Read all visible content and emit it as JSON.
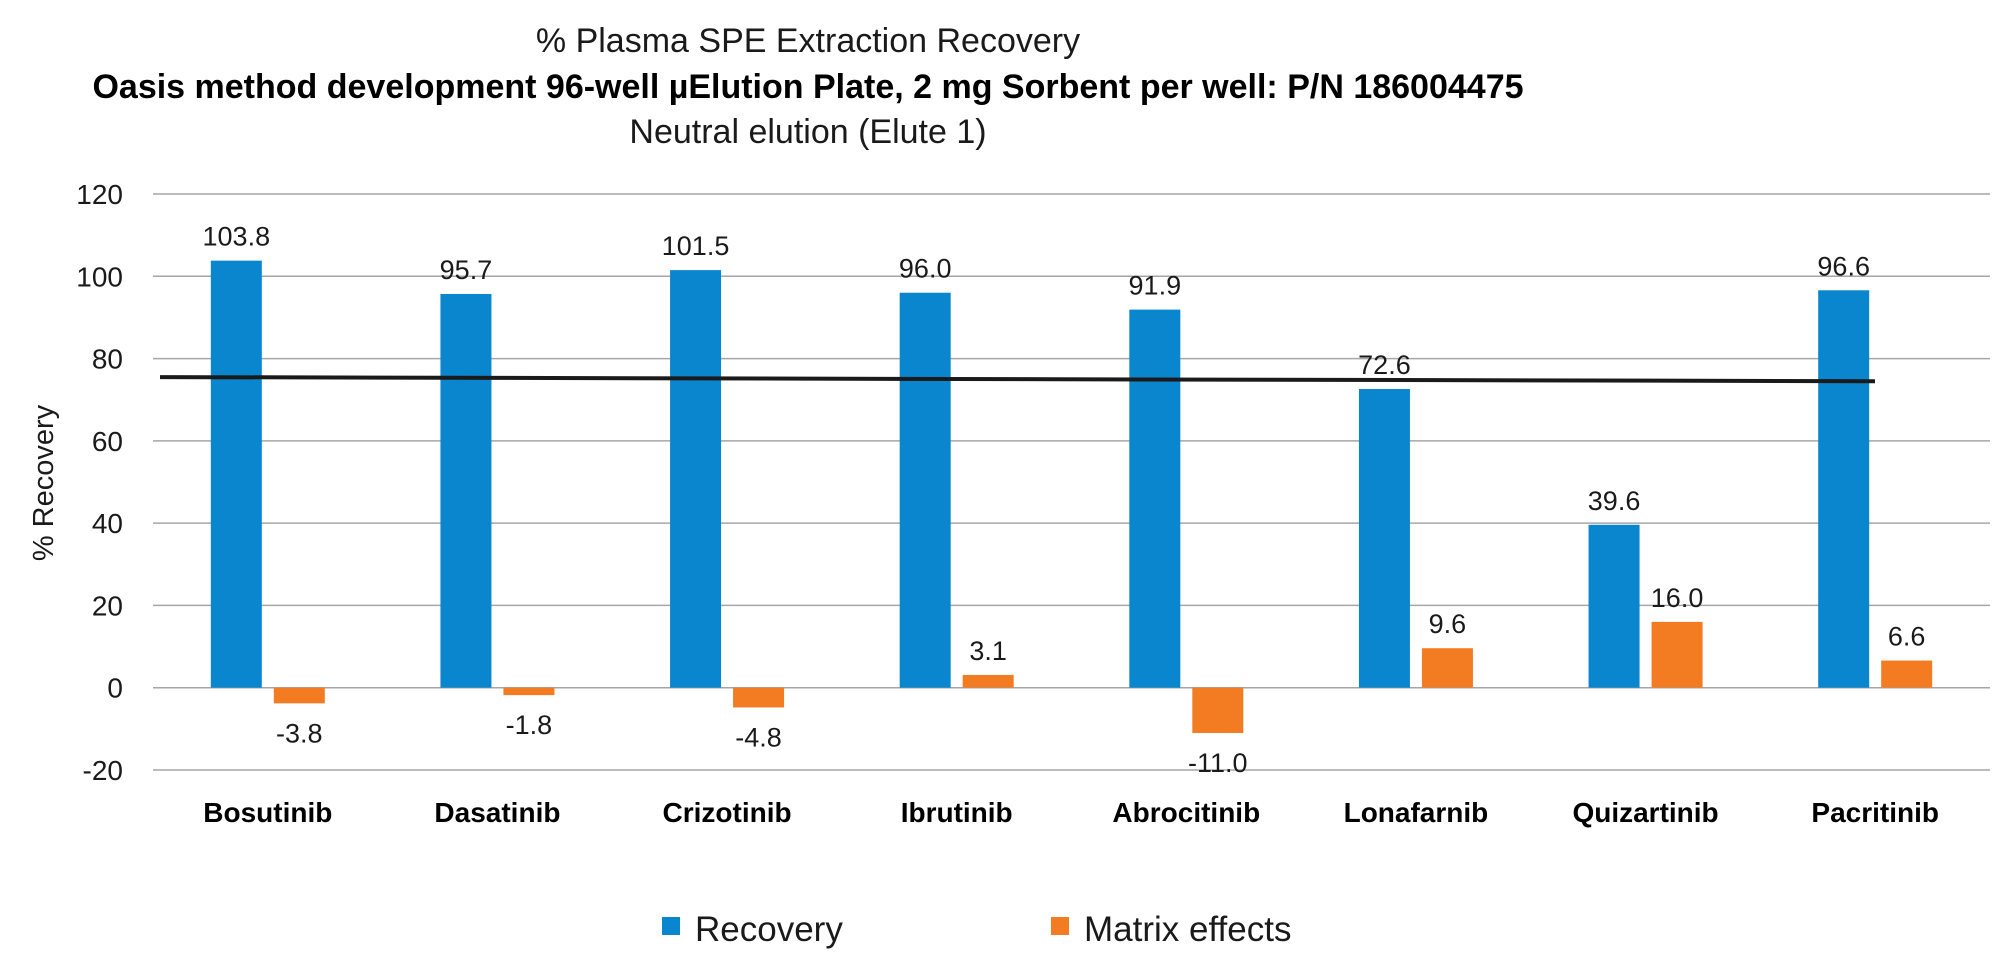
{
  "chart_data": {
    "type": "bar",
    "title": "% Plasma SPE Extraction Recovery",
    "subtitle": "Oasis method development 96-well µElution Plate, 2 mg Sorbent per well: P/N 186004475",
    "subtitle2": "Neutral elution (Elute 1)",
    "xlabel": "",
    "ylabel": "% Recovery",
    "ylim": [
      -20,
      120
    ],
    "yticks": [
      -20,
      0,
      20,
      40,
      60,
      80,
      100,
      120
    ],
    "grid": true,
    "categories": [
      "Bosutinib",
      "Dasatinib",
      "Crizotinib",
      "Ibrutinib",
      "Abrocitinib",
      "Lonafarnib",
      "Quizartinib",
      "Pacritinib"
    ],
    "series": [
      {
        "name": "Recovery",
        "color": "#0a86cf",
        "values": [
          103.8,
          95.7,
          101.5,
          96.0,
          91.9,
          72.6,
          39.6,
          96.6
        ],
        "labels": [
          "103.8",
          "95.7",
          "101.5",
          "96.0",
          "91.9",
          "72.6",
          "39.6",
          "96.6"
        ]
      },
      {
        "name": "Matrix effects",
        "color": "#f37b21",
        "values": [
          -3.8,
          -1.8,
          -4.8,
          3.1,
          -11.0,
          9.6,
          16.0,
          6.6
        ],
        "labels": [
          "-3.8",
          "-1.8",
          "-4.8",
          "3.1",
          "-11.0",
          "9.6",
          "16.0",
          "6.6"
        ]
      }
    ],
    "reference_line": {
      "start": 75.5,
      "end": 74.5,
      "color": "#1a1a1a"
    },
    "legend_position": "bottom"
  }
}
